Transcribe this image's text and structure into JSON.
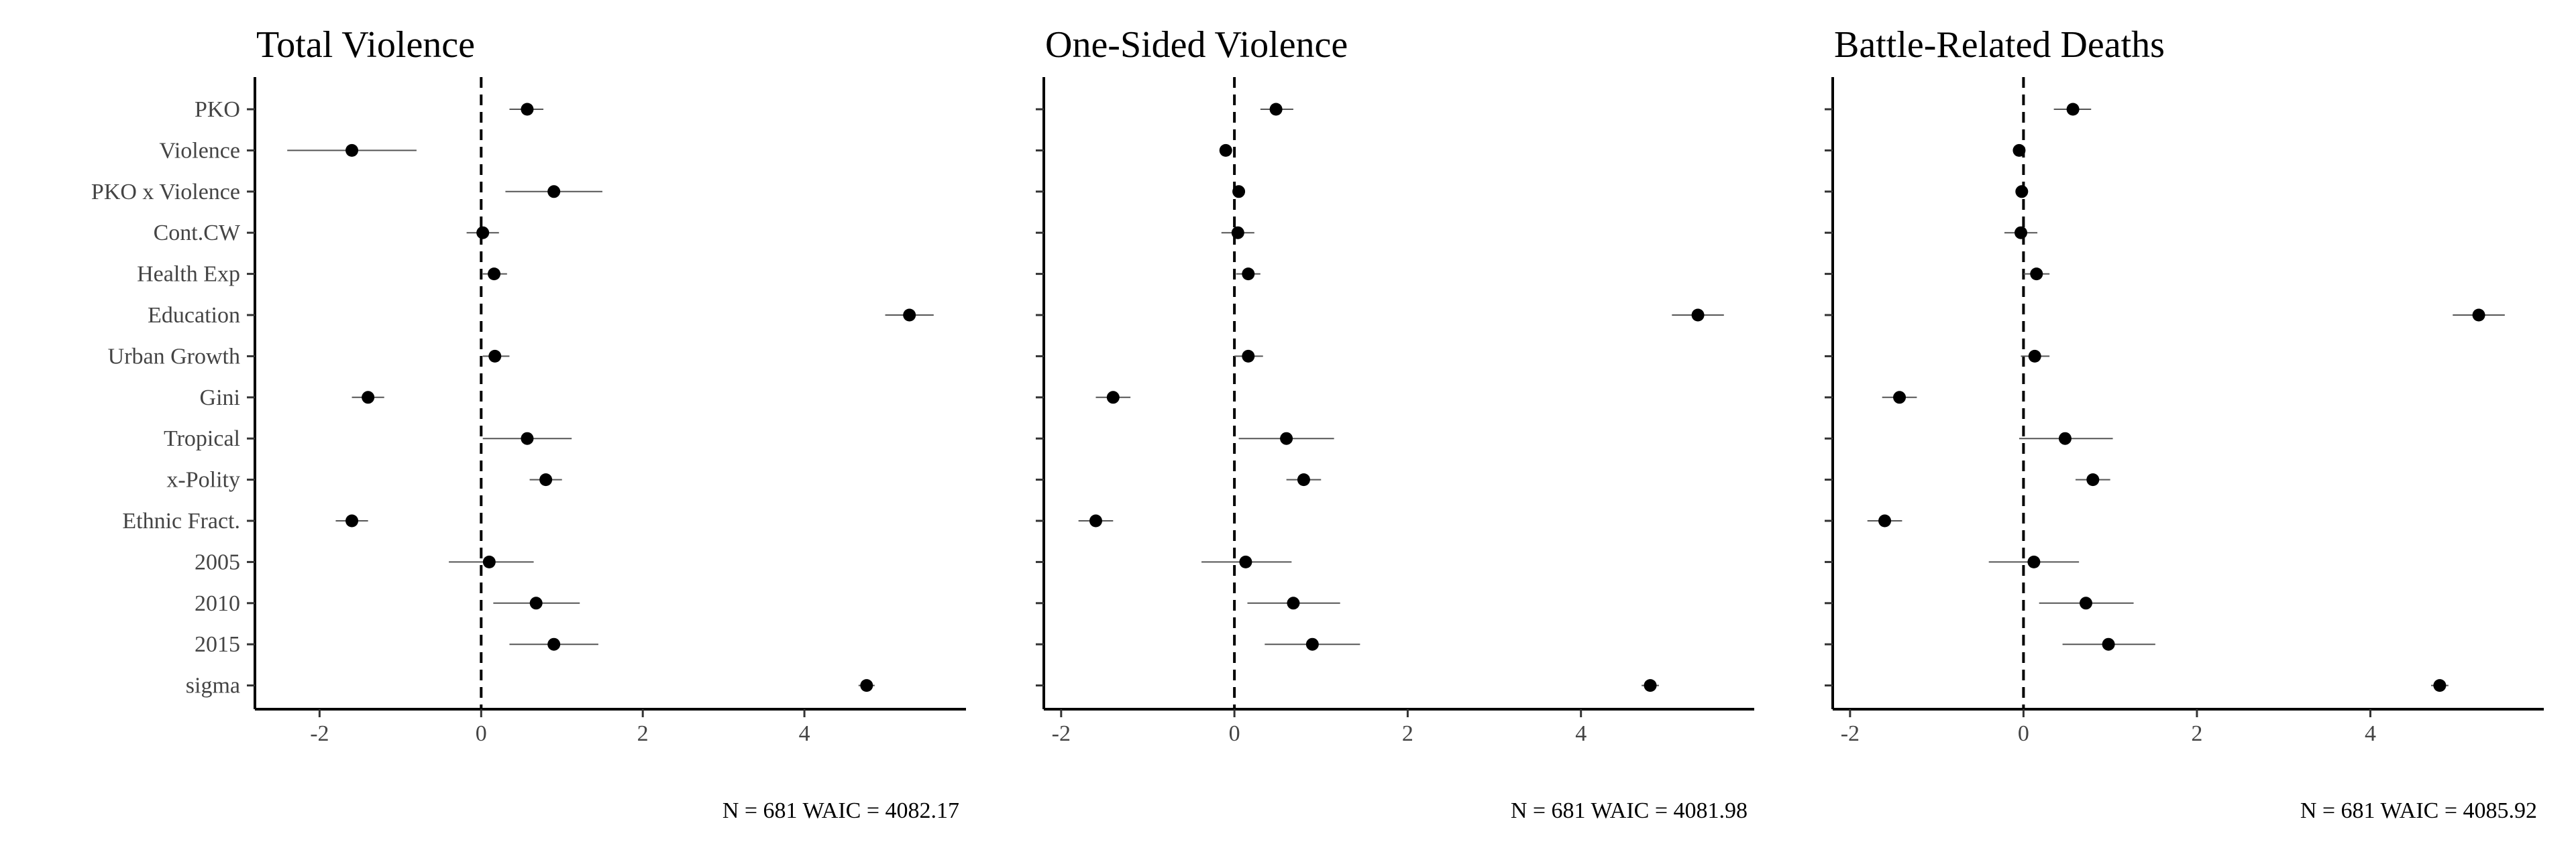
{
  "chart_data": [
    {
      "type": "scatter",
      "title": "Total Violence",
      "categories": [
        "PKO",
        "Violence",
        "PKO x Violence",
        "Cont.CW",
        "Health Exp",
        "Education",
        "Urban Growth",
        "Gini",
        "Tropical",
        "x-Polity",
        "Ethnic Fract.",
        "2005",
        "2010",
        "2015",
        "sigma"
      ],
      "x_ticks": [
        -2,
        0,
        2,
        4
      ],
      "xlim": [
        -2.8,
        6.0
      ],
      "reference_line": 0,
      "estimates": [
        0.57,
        -1.6,
        0.9,
        0.02,
        0.16,
        5.3,
        0.17,
        -1.4,
        0.57,
        0.8,
        -1.6,
        0.1,
        0.68,
        0.9,
        4.77
      ],
      "lower": [
        0.35,
        -2.4,
        0.3,
        -0.18,
        0.02,
        5.0,
        0.02,
        -1.6,
        0.02,
        0.6,
        -1.8,
        -0.4,
        0.15,
        0.35,
        4.67
      ],
      "upper": [
        0.77,
        -0.8,
        1.5,
        0.22,
        0.32,
        5.6,
        0.35,
        -1.2,
        1.12,
        1.0,
        -1.4,
        0.65,
        1.22,
        1.45,
        4.87
      ],
      "footnote": "N = 681  WAIC = 4082.17"
    },
    {
      "type": "scatter",
      "title": "One-Sided Violence",
      "categories": [
        "PKO",
        "Violence",
        "PKO x Violence",
        "Cont.CW",
        "Health Exp",
        "Education",
        "Urban Growth",
        "Gini",
        "Tropical",
        "x-Polity",
        "Ethnic Fract.",
        "2005",
        "2010",
        "2015",
        "sigma"
      ],
      "x_ticks": [
        -2,
        0,
        2,
        4
      ],
      "xlim": [
        -2.2,
        6.0
      ],
      "reference_line": 0,
      "estimates": [
        0.48,
        -0.1,
        0.05,
        0.04,
        0.16,
        5.35,
        0.16,
        -1.4,
        0.6,
        0.8,
        -1.6,
        0.13,
        0.68,
        0.9,
        4.8
      ],
      "lower": [
        0.3,
        -0.14,
        0.0,
        -0.15,
        0.02,
        5.05,
        0.0,
        -1.6,
        0.05,
        0.6,
        -1.8,
        -0.38,
        0.15,
        0.35,
        4.7
      ],
      "upper": [
        0.68,
        -0.06,
        0.1,
        0.23,
        0.3,
        5.65,
        0.33,
        -1.2,
        1.15,
        1.0,
        -1.4,
        0.66,
        1.22,
        1.45,
        4.9
      ],
      "footnote": "N = 681  WAIC = 4081.98"
    },
    {
      "type": "scatter",
      "title": "Battle-Related Deaths",
      "categories": [
        "PKO",
        "Violence",
        "PKO x Violence",
        "Cont.CW",
        "Health Exp",
        "Education",
        "Urban Growth",
        "Gini",
        "Tropical",
        "x-Polity",
        "Ethnic Fract.",
        "2005",
        "2010",
        "2015",
        "sigma"
      ],
      "x_ticks": [
        -2,
        0,
        2,
        4
      ],
      "xlim": [
        -2.2,
        6.0
      ],
      "reference_line": 0,
      "estimates": [
        0.57,
        -0.05,
        -0.02,
        -0.03,
        0.15,
        5.25,
        0.13,
        -1.43,
        0.48,
        0.8,
        -1.6,
        0.12,
        0.72,
        0.98,
        4.8
      ],
      "lower": [
        0.35,
        -0.09,
        -0.05,
        -0.22,
        0.0,
        4.95,
        -0.03,
        -1.63,
        -0.05,
        0.6,
        -1.8,
        -0.4,
        0.18,
        0.45,
        4.7
      ],
      "upper": [
        0.78,
        -0.01,
        0.01,
        0.16,
        0.3,
        5.55,
        0.3,
        -1.23,
        1.03,
        1.0,
        -1.4,
        0.64,
        1.27,
        1.52,
        4.9
      ],
      "footnote": "N = 681  WAIC = 4085.92"
    }
  ]
}
